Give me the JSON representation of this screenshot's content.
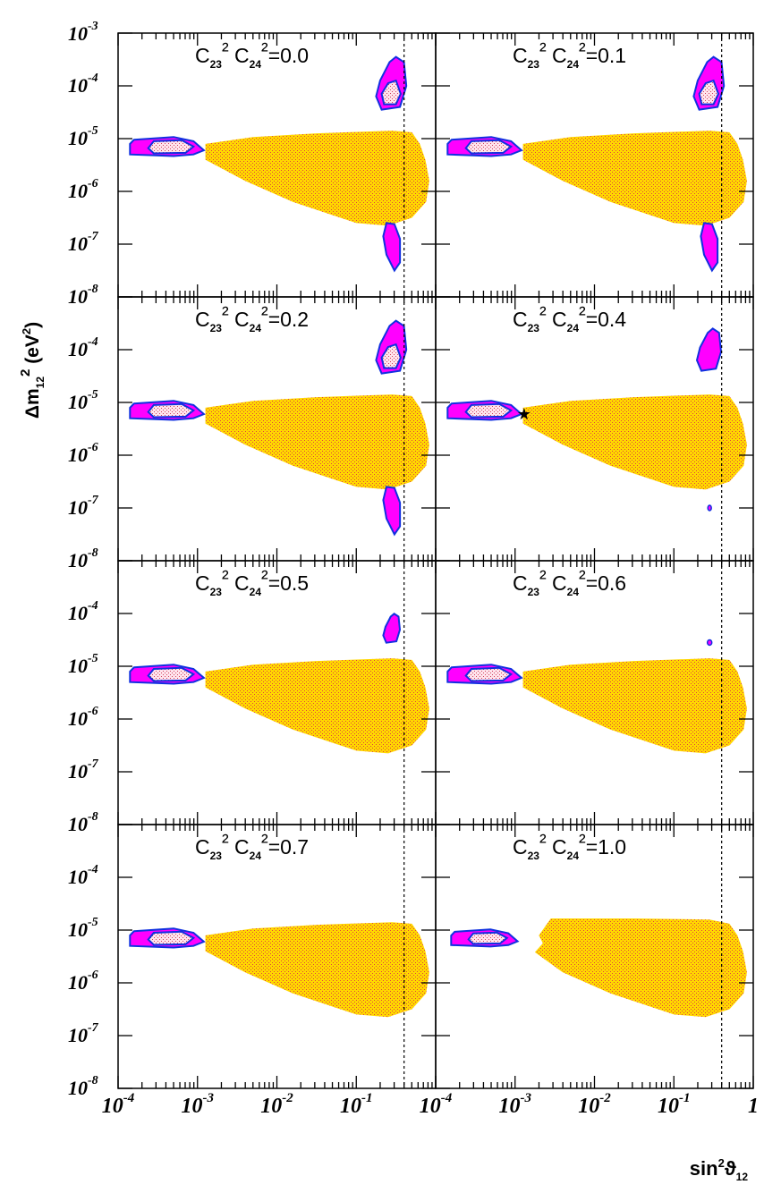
{
  "chart_data": {
    "type": "contour",
    "layout": "4x2 grid of panels",
    "xlabel": "sin²ϑ₁₂",
    "ylabel": "Δm₁₂² (eV²)",
    "x_scale": "log",
    "y_scale": "log",
    "xlim": [
      0.0001,
      1
    ],
    "ylim": [
      1e-08,
      0.001
    ],
    "x_tick_labels": [
      "10⁻⁴",
      "10⁻³",
      "10⁻²",
      "10⁻¹",
      "1"
    ],
    "y_tick_labels": [
      "10⁻³",
      "10⁻⁴",
      "10⁻⁵",
      "10⁻⁶",
      "10⁻⁷",
      "10⁻⁸"
    ],
    "vertical_reference_line_x": 0.4,
    "colors": {
      "outer_contour_fill": "#ff00ff",
      "contour_border": "#1030e0",
      "inner_contour_fill": "#ffe4ec",
      "yellow_region": "#ffd700",
      "dot_pattern": "#e04040"
    },
    "panels": [
      {
        "title": "C₂₃² C₂₄²=0.0",
        "value": 0.0,
        "regions": {
          "small_angle": "pink+magenta",
          "large_angle_high_dm": "pink+magenta",
          "low_dm_island": "magenta",
          "yellow_band": true
        }
      },
      {
        "title": "C₂₃² C₂₄²=0.1",
        "value": 0.1,
        "regions": {
          "small_angle": "pink+magenta",
          "large_angle_high_dm": "pink+magenta",
          "low_dm_island": "magenta",
          "yellow_band": true
        }
      },
      {
        "title": "C₂₃² C₂₄²=0.2",
        "value": 0.2,
        "regions": {
          "small_angle": "pink+magenta",
          "large_angle_high_dm": "pink+magenta",
          "low_dm_island": "magenta",
          "yellow_band": true
        }
      },
      {
        "title": "C₂₃² C₂₄²=0.4",
        "value": 0.4,
        "regions": {
          "small_angle": "pink+magenta",
          "large_angle_high_dm": "magenta",
          "low_dm_island": "tiny",
          "yellow_band": true
        },
        "best_fit_marker": {
          "x": 0.0013,
          "y": 6e-06
        }
      },
      {
        "title": "C₂₃² C₂₄²=0.5",
        "value": 0.5,
        "regions": {
          "small_angle": "pink+magenta",
          "large_angle_high_dm": "magenta",
          "low_dm_island": "none",
          "yellow_band": true
        }
      },
      {
        "title": "C₂₃² C₂₄²=0.6",
        "value": 0.6,
        "regions": {
          "small_angle": "pink+magenta",
          "large_angle_high_dm": "tiny",
          "low_dm_island": "none",
          "yellow_band": true
        }
      },
      {
        "title": "C₂₃² C₂₄²=0.7",
        "value": 0.7,
        "regions": {
          "small_angle": "pink+magenta",
          "large_angle_high_dm": "none",
          "low_dm_island": "none",
          "yellow_band": true
        }
      },
      {
        "title": "C₂₃² C₂₄²=1.0",
        "value": 1.0,
        "regions": {
          "small_angle": "pink+magenta (narrow)",
          "large_angle_high_dm": "none",
          "low_dm_island": "none",
          "yellow_band": true
        }
      }
    ]
  }
}
